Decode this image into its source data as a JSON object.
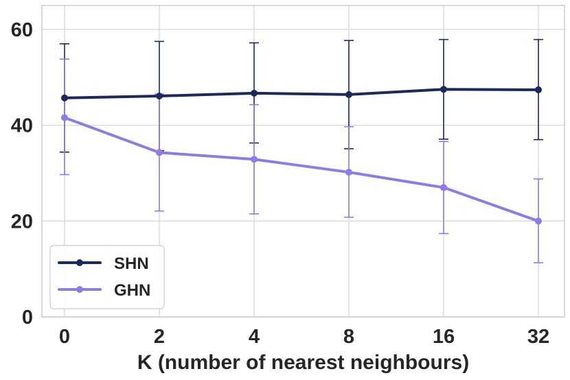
{
  "chart_data": {
    "type": "line",
    "title": "",
    "xlabel": "K (number of nearest neighbours)",
    "ylabel": "",
    "categories": [
      "0",
      "2",
      "4",
      "8",
      "16",
      "32"
    ],
    "ylim": [
      0,
      65
    ],
    "yticks": [
      0,
      20,
      40,
      60
    ],
    "grid": true,
    "legend_position": "lower-left",
    "series": [
      {
        "name": "SHN",
        "color": "#1b2a5c",
        "values": [
          45.7,
          46.1,
          46.7,
          46.4,
          47.5,
          47.4
        ],
        "err_low": [
          34.4,
          34.7,
          36.3,
          35.1,
          37.1,
          37.0
        ],
        "err_high": [
          57.0,
          57.5,
          57.2,
          57.7,
          57.9,
          57.9
        ]
      },
      {
        "name": "GHN",
        "color": "#8f7ae6",
        "values": [
          41.6,
          34.3,
          32.9,
          30.2,
          27.0,
          20.0
        ],
        "err_low": [
          29.7,
          22.1,
          21.5,
          20.8,
          17.4,
          11.3
        ],
        "err_high": [
          53.8,
          46.5,
          44.3,
          39.7,
          36.6,
          28.8
        ]
      }
    ]
  }
}
